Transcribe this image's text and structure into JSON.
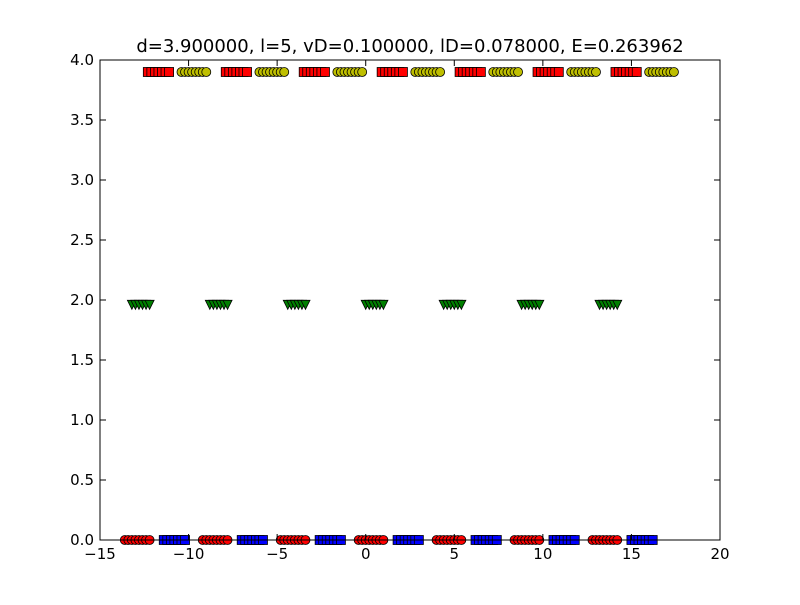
{
  "chart_data": {
    "type": "scatter",
    "title": "d=3.900000, l=5, vD=0.100000, lD=0.078000, E=0.263962",
    "xlabel": "",
    "ylabel": "",
    "xlim": [
      -15,
      20
    ],
    "ylim": [
      0,
      4
    ],
    "grid": false,
    "x_ticks": [
      -15,
      -10,
      -5,
      0,
      5,
      10,
      15,
      20
    ],
    "x_tick_labels": [
      "−15",
      "−10",
      "−5",
      "0",
      "5",
      "10",
      "15",
      "20"
    ],
    "y_ticks": [
      0,
      0.5,
      1,
      1.5,
      2,
      2.5,
      3,
      3.5,
      4
    ],
    "y_tick_labels": [
      "0.0",
      "0.5",
      "1.0",
      "1.5",
      "2.0",
      "2.5",
      "3.0",
      "3.5",
      "4.0"
    ],
    "series": [
      {
        "name": "top-red-squares",
        "marker": "square",
        "color": "#ff0000",
        "y": 3.9,
        "x": [
          -12.3,
          -12.1,
          -11.9,
          -11.7,
          -11.5,
          -11.3,
          -11.1,
          -7.9,
          -7.7,
          -7.5,
          -7.3,
          -7.1,
          -6.9,
          -6.7,
          -3.5,
          -3.3,
          -3.1,
          -2.9,
          -2.7,
          -2.5,
          -2.3,
          0.9,
          1.1,
          1.3,
          1.5,
          1.7,
          1.9,
          2.1,
          5.3,
          5.5,
          5.7,
          5.9,
          6.1,
          6.3,
          6.5,
          9.7,
          9.9,
          10.1,
          10.3,
          10.5,
          10.7,
          10.9,
          14.1,
          14.3,
          14.5,
          14.7,
          14.9,
          15.1,
          15.3
        ]
      },
      {
        "name": "top-yellow-circles",
        "marker": "circle",
        "color": "#bfbf00",
        "y": 3.9,
        "x": [
          -10.4,
          -10.2,
          -10.0,
          -9.8,
          -9.6,
          -9.4,
          -9.2,
          -9.0,
          -6.0,
          -5.8,
          -5.6,
          -5.4,
          -5.2,
          -5.0,
          -4.8,
          -4.6,
          -1.6,
          -1.4,
          -1.2,
          -1.0,
          -0.8,
          -0.6,
          -0.4,
          -0.2,
          2.8,
          3.0,
          3.2,
          3.4,
          3.6,
          3.8,
          4.0,
          4.2,
          7.2,
          7.4,
          7.6,
          7.8,
          8.0,
          8.2,
          8.4,
          8.6,
          11.6,
          11.8,
          12.0,
          12.2,
          12.4,
          12.6,
          12.8,
          13.0,
          16.0,
          16.2,
          16.4,
          16.6,
          16.8,
          17.0,
          17.2,
          17.4
        ]
      },
      {
        "name": "middle-green-triangles",
        "marker": "triangle-down",
        "color": "#007f00",
        "y": 1.96,
        "x": [
          -13.2,
          -13.0,
          -12.8,
          -12.6,
          -12.4,
          -12.2,
          -8.8,
          -8.6,
          -8.4,
          -8.2,
          -8.0,
          -7.8,
          -4.4,
          -4.2,
          -4.0,
          -3.8,
          -3.6,
          -3.4,
          0.0,
          0.2,
          0.4,
          0.6,
          0.8,
          1.0,
          4.4,
          4.6,
          4.8,
          5.0,
          5.2,
          5.4,
          8.8,
          9.0,
          9.2,
          9.4,
          9.6,
          9.8,
          13.2,
          13.4,
          13.6,
          13.8,
          14.0,
          14.2
        ]
      },
      {
        "name": "bottom-red-circles",
        "marker": "circle",
        "color": "#ff0000",
        "y": 0.0,
        "x": [
          -13.6,
          -13.4,
          -13.2,
          -13.0,
          -12.8,
          -12.6,
          -12.4,
          -12.2,
          -9.2,
          -9.0,
          -8.8,
          -8.6,
          -8.4,
          -8.2,
          -8.0,
          -7.8,
          -4.8,
          -4.6,
          -4.4,
          -4.2,
          -4.0,
          -3.8,
          -3.6,
          -3.4,
          -0.4,
          -0.2,
          0.0,
          0.2,
          0.4,
          0.6,
          0.8,
          1.0,
          4.0,
          4.2,
          4.4,
          4.6,
          4.8,
          5.0,
          5.2,
          5.4,
          8.4,
          8.6,
          8.8,
          9.0,
          9.2,
          9.4,
          9.6,
          9.8,
          12.8,
          13.0,
          13.2,
          13.4,
          13.6,
          13.8,
          14.0,
          14.2
        ]
      },
      {
        "name": "bottom-blue-squares",
        "marker": "square",
        "color": "#0000ff",
        "y": 0.0,
        "x": [
          -11.4,
          -11.2,
          -11.0,
          -10.8,
          -10.6,
          -10.4,
          -10.2,
          -7.0,
          -6.8,
          -6.6,
          -6.4,
          -6.2,
          -6.0,
          -5.8,
          -2.6,
          -2.4,
          -2.2,
          -2.0,
          -1.8,
          -1.6,
          -1.4,
          1.8,
          2.0,
          2.2,
          2.4,
          2.6,
          2.8,
          3.0,
          6.2,
          6.4,
          6.6,
          6.8,
          7.0,
          7.2,
          7.4,
          10.6,
          10.8,
          11.0,
          11.2,
          11.4,
          11.6,
          11.8,
          15.0,
          15.2,
          15.4,
          15.6,
          15.8,
          16.0,
          16.2
        ]
      }
    ]
  }
}
